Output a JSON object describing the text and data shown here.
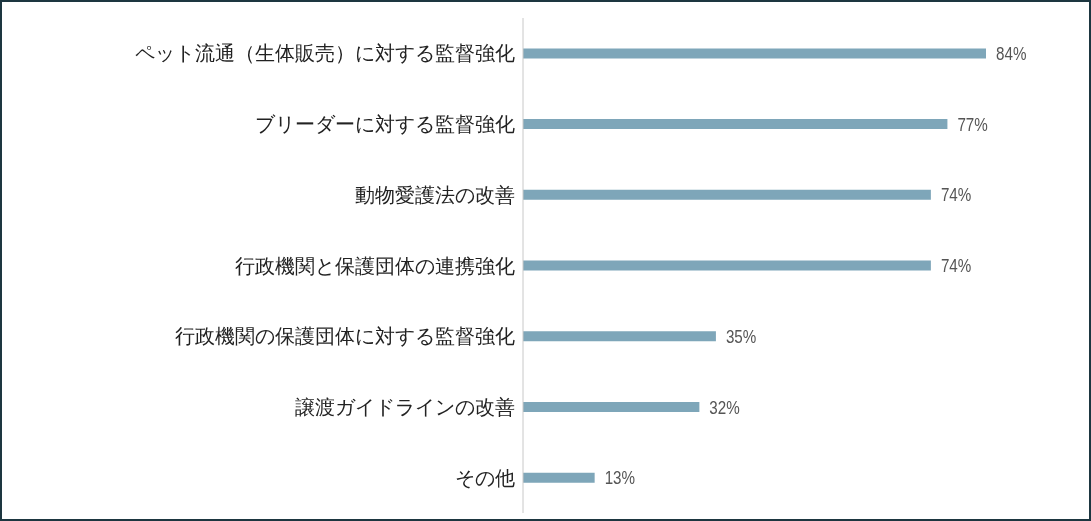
{
  "chart_data": {
    "type": "bar",
    "orientation": "horizontal",
    "categories": [
      "ペット流通（生体販売）に対する監督強化",
      "ブリーダーに対する監督強化",
      "動物愛護法の改善",
      "行政機関と保護団体の連携強化",
      "行政機関の保護団体に対する監督強化",
      "譲渡ガイドラインの改善",
      "その他"
    ],
    "values": [
      84,
      77,
      74,
      74,
      35,
      32,
      13
    ],
    "value_labels": [
      "84%",
      "77%",
      "74%",
      "74%",
      "35%",
      "32%",
      "13%"
    ],
    "color": "#7ea6b9"
  }
}
